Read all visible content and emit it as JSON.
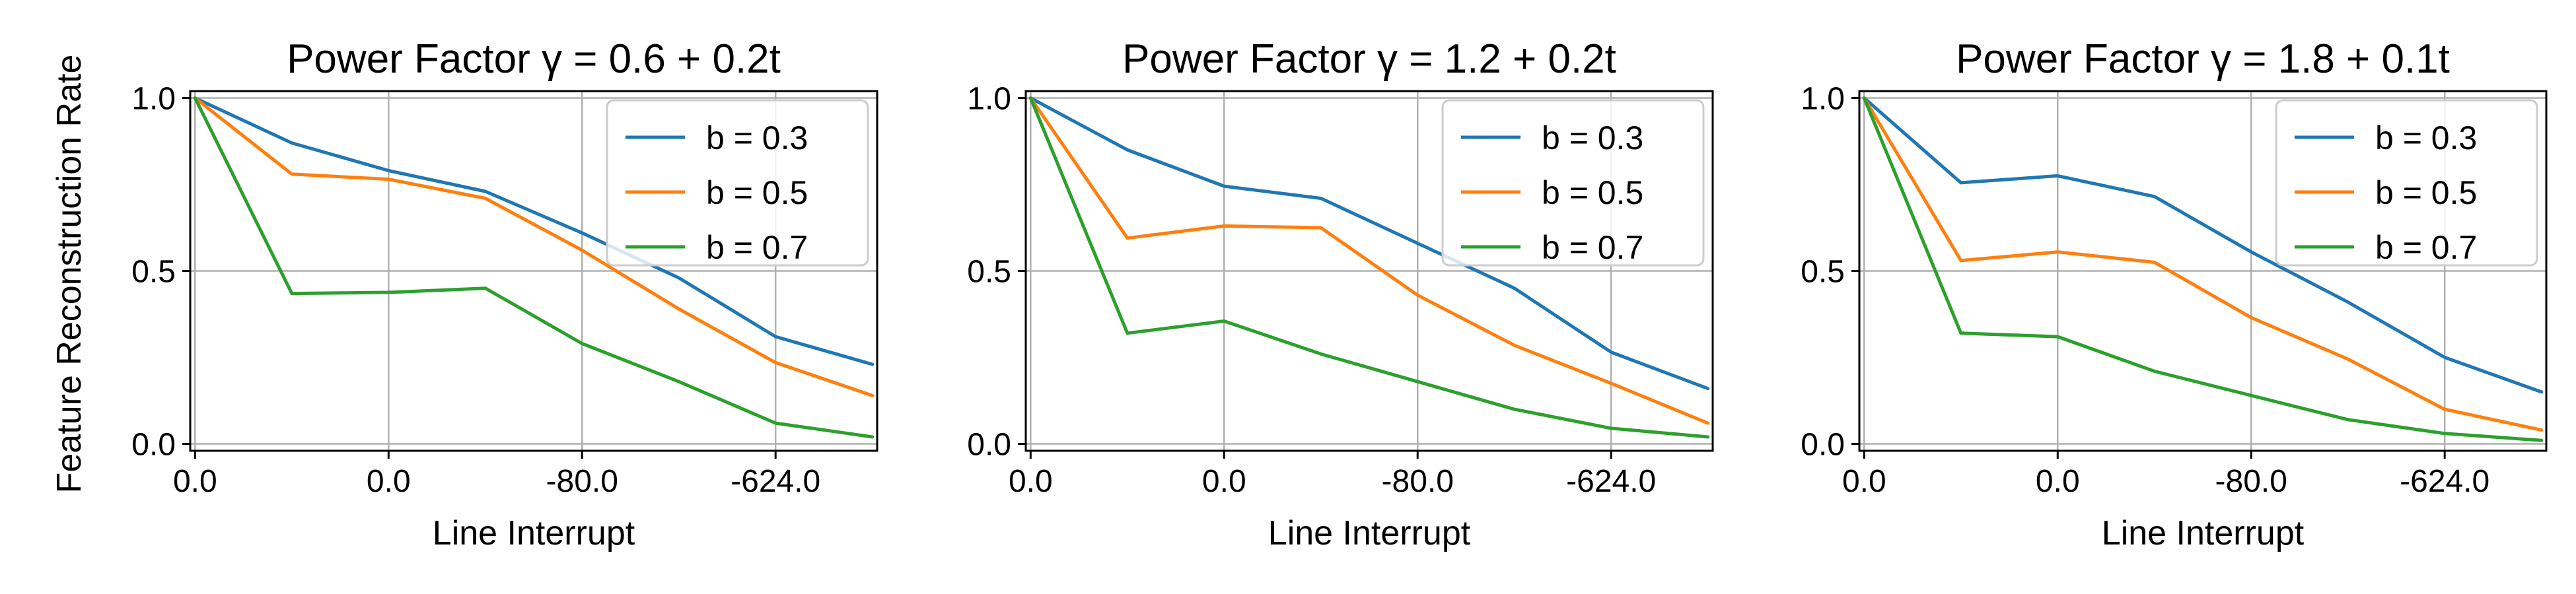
{
  "figure": {
    "ylabel": "Feature Reconstruction Rate"
  },
  "colors": {
    "b03": "#1f77b4",
    "b05": "#ff7f0e",
    "b07": "#2ca02c"
  },
  "chart_data": [
    {
      "type": "line",
      "title": "Power Factor γ = 0.6 + 0.2t",
      "xlabel": "Line Interrupt",
      "ylabel": "Feature Reconstruction Rate",
      "x": [
        0,
        1,
        2,
        3,
        4,
        5,
        6,
        7
      ],
      "xlim": [
        -0.05,
        7.05
      ],
      "xticks": [
        0,
        2,
        4,
        6
      ],
      "xtick_labels": [
        "0.0",
        "0.0",
        "-80.0",
        "-624.0"
      ],
      "ylim": [
        -0.02,
        1.02
      ],
      "yticks": [
        0.0,
        0.5,
        1.0
      ],
      "ytick_labels": [
        "0.0",
        "0.5",
        "1.0"
      ],
      "grid": true,
      "legend_position": "top-right",
      "series": [
        {
          "name": "b = 0.3",
          "color": "#1f77b4",
          "values": [
            1.0,
            0.87,
            0.79,
            0.73,
            0.61,
            0.48,
            0.31,
            0.23
          ]
        },
        {
          "name": "b = 0.5",
          "color": "#ff7f0e",
          "values": [
            1.0,
            0.78,
            0.765,
            0.71,
            0.56,
            0.39,
            0.235,
            0.14
          ]
        },
        {
          "name": "b = 0.7",
          "color": "#2ca02c",
          "values": [
            1.0,
            0.435,
            0.438,
            0.45,
            0.29,
            0.18,
            0.06,
            0.02
          ]
        }
      ]
    },
    {
      "type": "line",
      "title": "Power Factor γ = 1.2 + 0.2t",
      "xlabel": "Line Interrupt",
      "ylabel": "",
      "x": [
        0,
        1,
        2,
        3,
        4,
        5,
        6,
        7
      ],
      "xlim": [
        -0.05,
        7.05
      ],
      "xticks": [
        0,
        2,
        4,
        6
      ],
      "xtick_labels": [
        "0.0",
        "0.0",
        "-80.0",
        "-624.0"
      ],
      "ylim": [
        -0.02,
        1.02
      ],
      "yticks": [
        0.0,
        0.5,
        1.0
      ],
      "ytick_labels": [
        "0.0",
        "0.5",
        "1.0"
      ],
      "grid": true,
      "legend_position": "top-right",
      "series": [
        {
          "name": "b = 0.3",
          "color": "#1f77b4",
          "values": [
            1.0,
            0.85,
            0.745,
            0.71,
            0.58,
            0.45,
            0.265,
            0.16
          ]
        },
        {
          "name": "b = 0.5",
          "color": "#ff7f0e",
          "values": [
            1.0,
            0.595,
            0.63,
            0.625,
            0.43,
            0.285,
            0.175,
            0.06
          ]
        },
        {
          "name": "b = 0.7",
          "color": "#2ca02c",
          "values": [
            1.0,
            0.32,
            0.355,
            0.26,
            0.18,
            0.1,
            0.045,
            0.02
          ]
        }
      ]
    },
    {
      "type": "line",
      "title": "Power Factor γ = 1.8 + 0.1t",
      "xlabel": "Line Interrupt",
      "ylabel": "",
      "x": [
        0,
        1,
        2,
        3,
        4,
        5,
        6,
        7
      ],
      "xlim": [
        -0.05,
        7.05
      ],
      "xticks": [
        0,
        2,
        4,
        6
      ],
      "xtick_labels": [
        "0.0",
        "0.0",
        "-80.0",
        "-624.0"
      ],
      "ylim": [
        -0.02,
        1.02
      ],
      "yticks": [
        0.0,
        0.5,
        1.0
      ],
      "ytick_labels": [
        "0.0",
        "0.5",
        "1.0"
      ],
      "grid": true,
      "legend_position": "top-right",
      "series": [
        {
          "name": "b = 0.3",
          "color": "#1f77b4",
          "values": [
            1.0,
            0.755,
            0.775,
            0.715,
            0.555,
            0.41,
            0.25,
            0.15
          ]
        },
        {
          "name": "b = 0.5",
          "color": "#ff7f0e",
          "values": [
            1.0,
            0.53,
            0.555,
            0.525,
            0.365,
            0.245,
            0.1,
            0.04
          ]
        },
        {
          "name": "b = 0.7",
          "color": "#2ca02c",
          "values": [
            1.0,
            0.32,
            0.31,
            0.21,
            0.14,
            0.07,
            0.03,
            0.01
          ]
        }
      ]
    }
  ]
}
